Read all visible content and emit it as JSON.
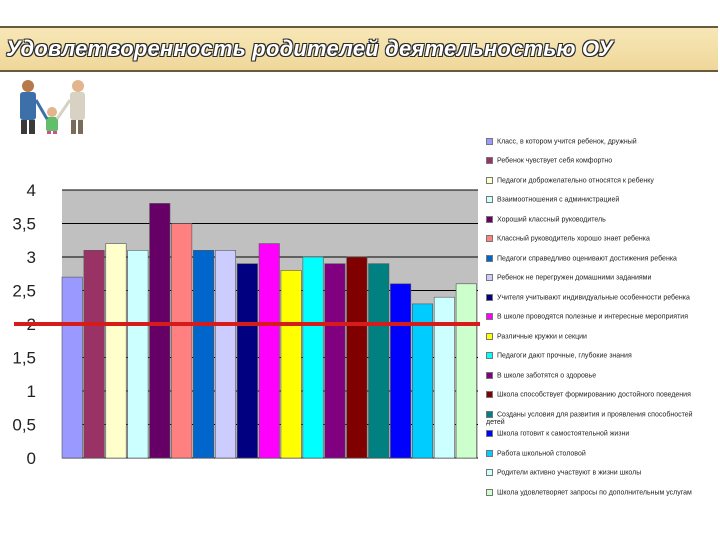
{
  "slide": {
    "title": "Удовлетворенность родителей деятельностью ОУ"
  },
  "chart_data": {
    "type": "bar",
    "ylim": [
      0,
      4
    ],
    "yticks": [
      "0",
      "0,5",
      "1",
      "1,5",
      "2",
      "2,5",
      "3",
      "3,5",
      "4"
    ],
    "grid": true,
    "legend_position": "right",
    "reference_line": {
      "value": 2,
      "color": "#d61b1b"
    },
    "series": [
      {
        "name": "Класс, в котором учится ребенок, дружный",
        "value": 2.7,
        "color": "#9999ff"
      },
      {
        "name": "Ребенок чувствует себя комфортно",
        "value": 3.1,
        "color": "#993366"
      },
      {
        "name": "Педагоги доброжелательно относятся к ребенку",
        "value": 3.2,
        "color": "#ffffcc"
      },
      {
        "name": "Взаимоотношения с администрацией",
        "value": 3.1,
        "color": "#ccffff"
      },
      {
        "name": "Хороший классный руководитель",
        "value": 3.8,
        "color": "#660066"
      },
      {
        "name": "Классный руководитель хорошо знает ребенка",
        "value": 3.5,
        "color": "#ff8080"
      },
      {
        "name": "Педагоги справедливо оценивают достижения ребенка",
        "value": 3.1,
        "color": "#0066cc"
      },
      {
        "name": "Ребенок не перегружен домашними заданиями",
        "value": 3.1,
        "color": "#ccccff"
      },
      {
        "name": "Учителя учитывают индивидуальные особенности ребенка",
        "value": 2.9,
        "color": "#000080"
      },
      {
        "name": "В школе проводятся полезные и интересные мероприятия",
        "value": 3.2,
        "color": "#ff00ff"
      },
      {
        "name": "Различные кружки и секции",
        "value": 2.8,
        "color": "#ffff00"
      },
      {
        "name": "Педагоги дают прочные, глубокие знания",
        "value": 3.0,
        "color": "#00ffff"
      },
      {
        "name": "В школе заботятся о здоровье",
        "value": 2.9,
        "color": "#800080"
      },
      {
        "name": "Школа способствует формированию достойного поведения",
        "value": 3.0,
        "color": "#800000"
      },
      {
        "name": "Созданы условия для развития и проявления способностей детей",
        "value": 2.9,
        "color": "#008080"
      },
      {
        "name": "Школа готовит к самостоятельной жизни",
        "value": 2.6,
        "color": "#0000ff"
      },
      {
        "name": "Работа школьной столовой",
        "value": 2.3,
        "color": "#00ccff"
      },
      {
        "name": "Родители активно участвуют в жизни школы",
        "value": 2.4,
        "color": "#ccffff"
      },
      {
        "name": "Школа удовлетворяет запросы по дополнительным услугам",
        "value": 2.6,
        "color": "#ccffcc"
      }
    ]
  }
}
